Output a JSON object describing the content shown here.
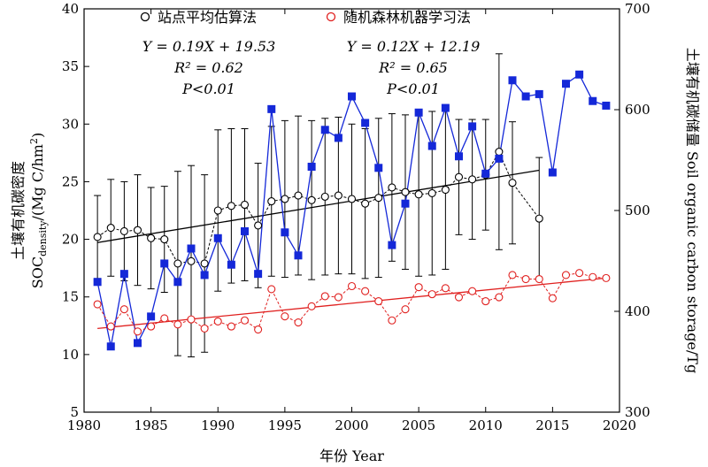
{
  "chart_data": {
    "type": "scatter",
    "xlabel": "年份 Year",
    "ylabel_left": {
      "main": "土壤有机碳密度",
      "prefix": "SOC",
      "sub": "density",
      "unit": "/(Mg C/hm",
      "sup": "2",
      "close": ")"
    },
    "ylabel_right": "土壤有机碳储量 Soil organic carbon storage/Tg",
    "xlim": [
      1980,
      2020
    ],
    "ylim_left": [
      5,
      40
    ],
    "ylim_right": [
      300,
      700
    ],
    "x_ticks": [
      1980,
      1985,
      1990,
      1995,
      2000,
      2005,
      2010,
      2015,
      2020
    ],
    "y_ticks_left": [
      5,
      10,
      15,
      20,
      25,
      30,
      35,
      40
    ],
    "y_ticks_right": [
      300,
      400,
      500,
      600,
      700
    ],
    "legend": [
      {
        "label": "站点平均估算法",
        "marker": "open-circle",
        "color": "#000000"
      },
      {
        "label": "随机森林机器学习法",
        "marker": "open-circle",
        "color": "#e0201f"
      }
    ],
    "annotations": [
      {
        "eq": "Y = 0.19X + 19.53",
        "r2": "R² = 0.62",
        "p": "P<0.01"
      },
      {
        "eq": "Y = 0.12X + 12.19",
        "r2": "R² = 0.65",
        "p": "P<0.01"
      }
    ],
    "series": [
      {
        "name": "站点平均估算法",
        "axis": "left",
        "color": "#000000",
        "x": [
          1981,
          1982,
          1983,
          1984,
          1985,
          1986,
          1987,
          1988,
          1989,
          1990,
          1991,
          1992,
          1993,
          1994,
          1995,
          1996,
          1997,
          1998,
          1999,
          2000,
          2001,
          2002,
          2003,
          2004,
          2005,
          2006,
          2007,
          2008,
          2009,
          2010,
          2011,
          2012,
          2014
        ],
        "y": [
          20.2,
          21.0,
          20.7,
          20.8,
          20.1,
          20.0,
          17.9,
          18.1,
          17.9,
          22.5,
          22.9,
          23.0,
          21.2,
          23.3,
          23.5,
          23.8,
          23.4,
          23.7,
          23.8,
          23.5,
          23.1,
          23.6,
          24.5,
          24.1,
          23.9,
          24.0,
          24.3,
          25.4,
          25.2,
          25.6,
          27.6,
          24.9,
          21.8
        ],
        "err": [
          3.6,
          4.2,
          4.3,
          4.8,
          4.4,
          4.6,
          8.0,
          8.3,
          7.7,
          7.0,
          6.7,
          6.6,
          5.4,
          6.5,
          6.8,
          6.9,
          6.9,
          6.8,
          6.8,
          6.5,
          6.5,
          6.9,
          6.4,
          6.7,
          7.1,
          7.1,
          6.9,
          5.0,
          5.2,
          4.8,
          8.5,
          5.3,
          5.3
        ],
        "trend": {
          "x": [
            1981,
            2014
          ],
          "y": [
            19.72,
            25.99
          ]
        }
      },
      {
        "name": "",
        "axis": "left",
        "color": "#1428d8",
        "x": [
          1981,
          1982,
          1983,
          1984,
          1985,
          1986,
          1987,
          1988,
          1989,
          1990,
          1991,
          1992,
          1993,
          1994,
          1995,
          1996,
          1997,
          1998,
          1999,
          2000,
          2001,
          2002,
          2003,
          2004,
          2005,
          2006,
          2007,
          2008,
          2009,
          2010,
          2011,
          2012,
          2013,
          2014,
          2015,
          2016,
          2017,
          2018,
          2019
        ],
        "y": [
          16.3,
          10.7,
          17.0,
          11.0,
          13.3,
          17.9,
          16.3,
          19.2,
          16.9,
          20.1,
          17.8,
          20.7,
          17.0,
          31.3,
          20.6,
          18.6,
          26.3,
          29.5,
          28.8,
          32.4,
          30.1,
          26.2,
          19.5,
          23.1,
          31.0,
          28.1,
          31.4,
          27.2,
          29.8,
          25.7,
          27.0,
          33.8,
          32.4,
          32.6,
          25.8,
          33.5,
          34.3,
          32.0,
          31.6
        ]
      },
      {
        "name": "随机森林机器学习法",
        "axis": "right",
        "color": "#e0201f",
        "x": [
          1981,
          1982,
          1983,
          1984,
          1985,
          1986,
          1987,
          1988,
          1989,
          1990,
          1991,
          1992,
          1993,
          1994,
          1995,
          1996,
          1997,
          1998,
          1999,
          2000,
          2001,
          2002,
          2003,
          2004,
          2005,
          2006,
          2007,
          2008,
          2009,
          2010,
          2011,
          2012,
          2013,
          2014,
          2015,
          2016,
          2017,
          2018,
          2019
        ],
        "y": [
          407,
          385,
          402,
          380,
          385,
          393,
          387,
          392,
          383,
          390,
          385,
          391,
          382,
          422,
          395,
          389,
          405,
          415,
          414,
          425,
          420,
          410,
          391,
          402,
          424,
          417,
          423,
          414,
          420,
          410,
          414,
          436,
          432,
          432,
          413,
          436,
          438,
          434,
          433
        ],
        "trend": {
          "x": [
            1981,
            2019
          ],
          "y": [
            383,
            433
          ]
        }
      }
    ]
  }
}
